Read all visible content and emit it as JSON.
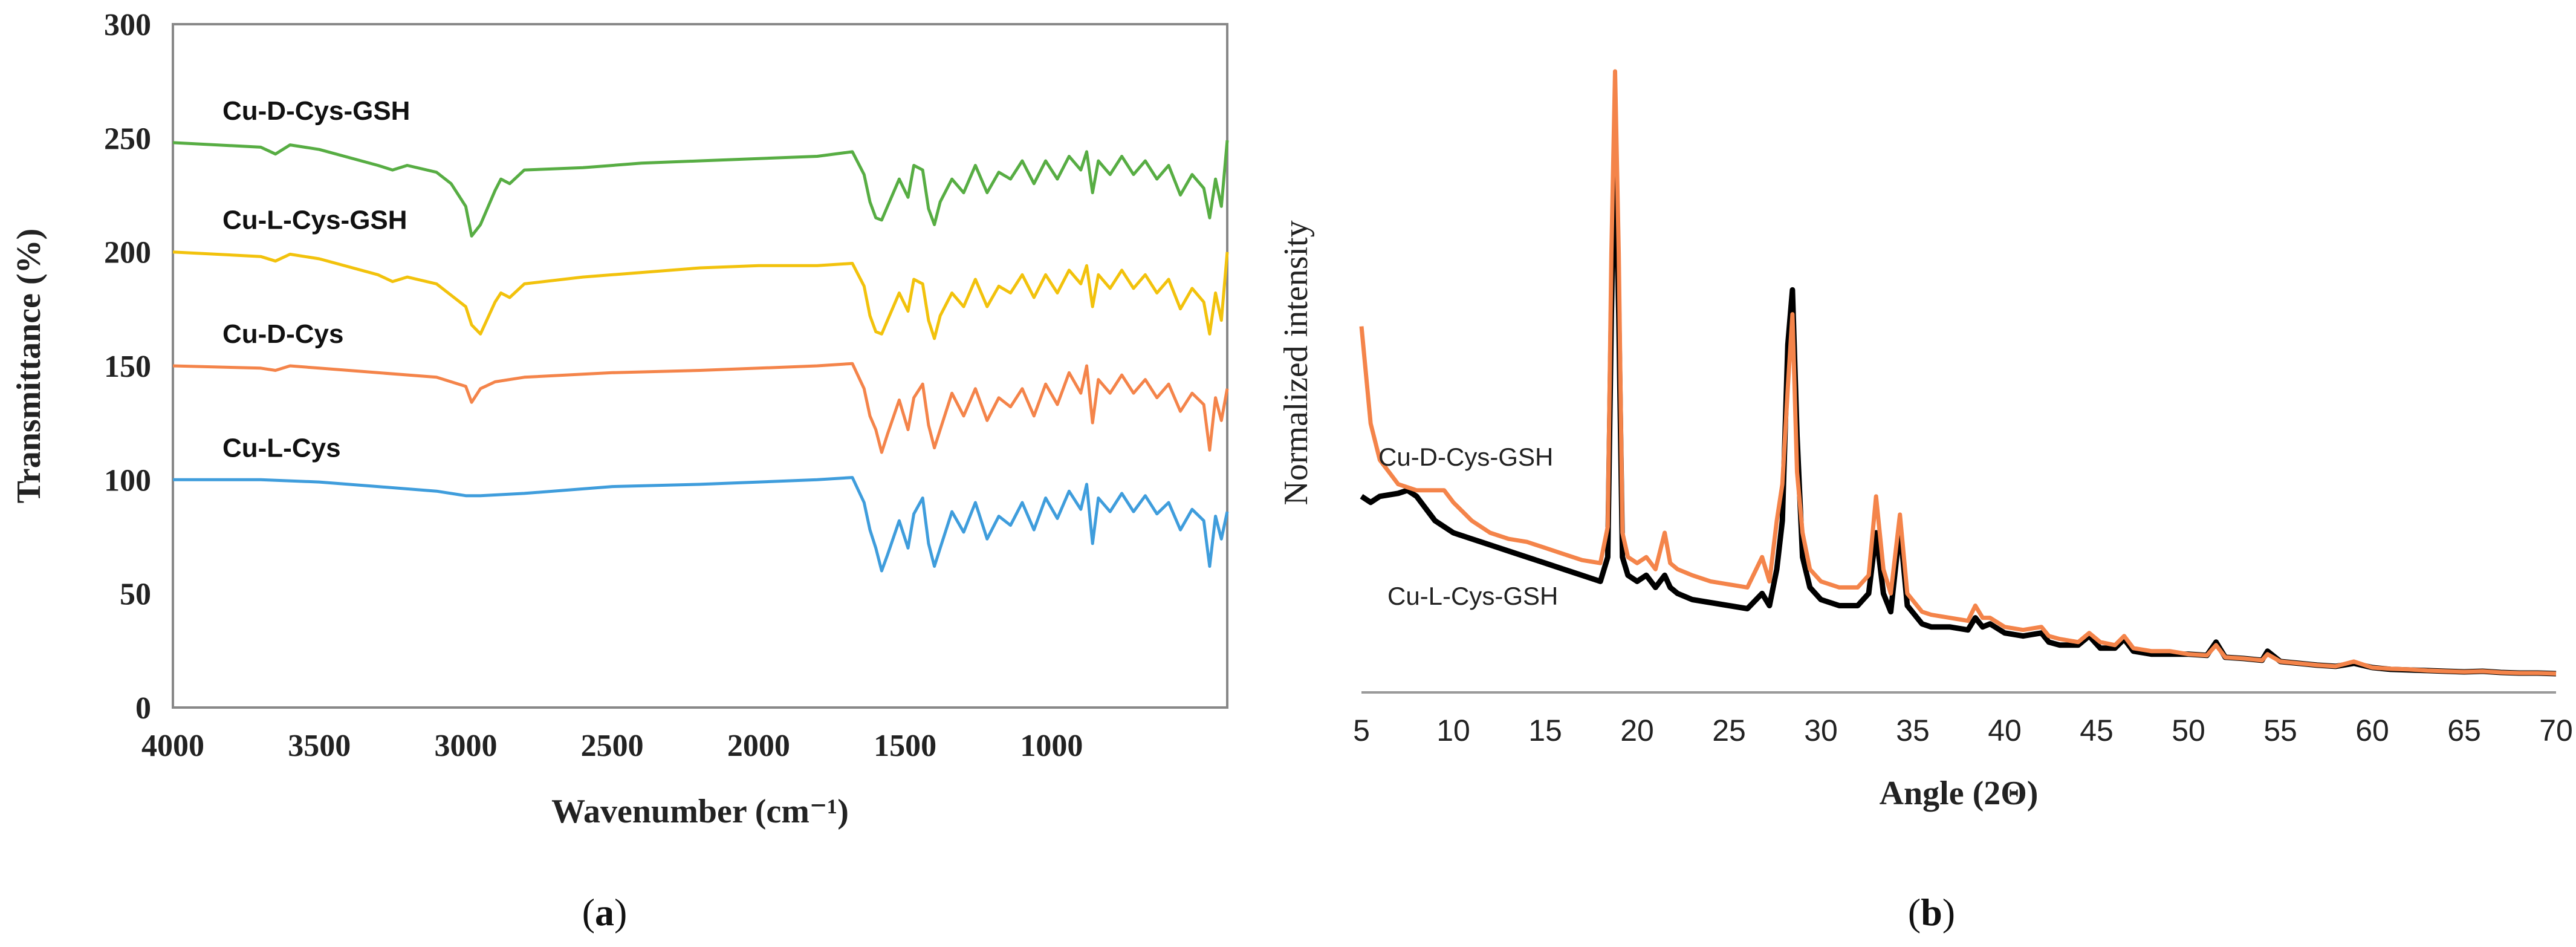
{
  "panels": {
    "a": {
      "caption_letter": "a"
    },
    "b": {
      "caption_letter": "b"
    }
  },
  "chart_data": [
    {
      "id": "ftir",
      "type": "line",
      "xlabel": "Wavenumber (cm⁻¹)",
      "ylabel": "Transmittance (%)",
      "xlim": [
        4000,
        400
      ],
      "x_reversed": true,
      "ylim": [
        0,
        300
      ],
      "xticks": [
        4000,
        3500,
        3000,
        2500,
        2000,
        1500,
        1000
      ],
      "yticks": [
        0,
        50,
        100,
        150,
        200,
        250,
        300
      ],
      "grid": false,
      "legend": "inline labels above each trace",
      "series": [
        {
          "name": "Cu-L-Cys",
          "color": "#3f9ddc",
          "x": [
            4000,
            3700,
            3500,
            3300,
            3100,
            3000,
            2950,
            2800,
            2500,
            2200,
            2000,
            1800,
            1680,
            1640,
            1620,
            1600,
            1580,
            1560,
            1520,
            1490,
            1470,
            1440,
            1420,
            1400,
            1380,
            1340,
            1300,
            1260,
            1220,
            1180,
            1140,
            1100,
            1060,
            1020,
            980,
            940,
            900,
            880,
            860,
            840,
            800,
            760,
            720,
            680,
            640,
            600,
            560,
            520,
            480,
            460,
            440,
            420,
            400
          ],
          "y": [
            100,
            100,
            99,
            97,
            95,
            93,
            93,
            94,
            97,
            98,
            99,
            100,
            101,
            90,
            78,
            70,
            60,
            67,
            82,
            70,
            85,
            92,
            72,
            62,
            70,
            86,
            77,
            90,
            74,
            84,
            80,
            90,
            78,
            92,
            83,
            95,
            87,
            98,
            72,
            92,
            86,
            94,
            86,
            93,
            85,
            90,
            78,
            87,
            82,
            62,
            84,
            74,
            86
          ]
        },
        {
          "name": "Cu-D-Cys",
          "color": "#f4844a",
          "x": [
            4000,
            3700,
            3650,
            3600,
            3500,
            3300,
            3100,
            3000,
            2980,
            2950,
            2900,
            2800,
            2500,
            2200,
            2000,
            1800,
            1680,
            1640,
            1620,
            1600,
            1580,
            1560,
            1520,
            1490,
            1470,
            1440,
            1420,
            1400,
            1380,
            1340,
            1300,
            1260,
            1220,
            1180,
            1140,
            1100,
            1060,
            1020,
            980,
            940,
            900,
            880,
            860,
            840,
            800,
            760,
            720,
            680,
            640,
            600,
            560,
            520,
            480,
            460,
            440,
            420,
            400
          ],
          "y": [
            150,
            149,
            148,
            150,
            149,
            147,
            145,
            141,
            134,
            140,
            143,
            145,
            147,
            148,
            149,
            150,
            151,
            140,
            128,
            122,
            112,
            120,
            135,
            122,
            136,
            142,
            124,
            114,
            122,
            138,
            128,
            140,
            126,
            136,
            132,
            140,
            128,
            142,
            133,
            147,
            138,
            150,
            125,
            144,
            138,
            146,
            138,
            144,
            136,
            142,
            130,
            138,
            133,
            113,
            136,
            126,
            140
          ]
        },
        {
          "name": "Cu-L-Cys-GSH",
          "color": "#f2c20c",
          "x": [
            4000,
            3700,
            3650,
            3600,
            3500,
            3300,
            3250,
            3200,
            3100,
            3050,
            3000,
            2980,
            2950,
            2900,
            2880,
            2850,
            2800,
            2600,
            2400,
            2200,
            2000,
            1800,
            1680,
            1640,
            1620,
            1600,
            1580,
            1560,
            1520,
            1490,
            1470,
            1440,
            1420,
            1400,
            1380,
            1340,
            1300,
            1260,
            1220,
            1180,
            1140,
            1100,
            1060,
            1020,
            980,
            940,
            900,
            880,
            860,
            840,
            800,
            760,
            720,
            680,
            640,
            600,
            560,
            520,
            480,
            460,
            440,
            420,
            400
          ],
          "y": [
            200,
            198,
            196,
            199,
            197,
            190,
            187,
            189,
            186,
            181,
            176,
            168,
            164,
            178,
            182,
            180,
            186,
            189,
            191,
            193,
            194,
            194,
            195,
            185,
            172,
            165,
            164,
            170,
            182,
            174,
            188,
            186,
            170,
            162,
            172,
            182,
            176,
            188,
            176,
            185,
            182,
            190,
            180,
            190,
            182,
            192,
            186,
            194,
            176,
            190,
            184,
            192,
            184,
            190,
            182,
            188,
            175,
            184,
            178,
            164,
            182,
            170,
            200
          ]
        },
        {
          "name": "Cu-D-Cys-GSH",
          "color": "#57ad43",
          "x": [
            4000,
            3700,
            3650,
            3600,
            3500,
            3300,
            3250,
            3200,
            3100,
            3050,
            3000,
            2980,
            2950,
            2900,
            2880,
            2850,
            2800,
            2600,
            2400,
            2200,
            2000,
            1800,
            1680,
            1640,
            1620,
            1600,
            1580,
            1560,
            1520,
            1490,
            1470,
            1440,
            1420,
            1400,
            1380,
            1340,
            1300,
            1260,
            1220,
            1180,
            1140,
            1100,
            1060,
            1020,
            980,
            940,
            900,
            880,
            860,
            840,
            800,
            760,
            720,
            680,
            640,
            600,
            560,
            520,
            480,
            460,
            440,
            420,
            400
          ],
          "y": [
            248,
            246,
            243,
            247,
            245,
            238,
            236,
            238,
            235,
            230,
            220,
            207,
            212,
            227,
            232,
            230,
            236,
            237,
            239,
            240,
            241,
            242,
            244,
            234,
            222,
            215,
            214,
            220,
            232,
            224,
            238,
            236,
            219,
            212,
            222,
            232,
            226,
            238,
            226,
            235,
            232,
            240,
            230,
            240,
            232,
            242,
            236,
            244,
            226,
            240,
            234,
            242,
            234,
            240,
            232,
            238,
            225,
            234,
            228,
            215,
            232,
            220,
            249
          ]
        }
      ]
    },
    {
      "id": "xrd",
      "type": "line",
      "xlabel": "Angle (2Θ)",
      "ylabel": "Normalized intensity",
      "xlim": [
        5,
        70
      ],
      "ylim": [
        0,
        1
      ],
      "xticks": [
        5,
        10,
        15,
        20,
        25,
        30,
        35,
        40,
        45,
        50,
        55,
        60,
        65,
        70
      ],
      "yticks": [],
      "grid": false,
      "legend": "inline labels at left",
      "series": [
        {
          "name": "Cu-L-Cys-GSH",
          "color": "#000000",
          "x": [
            5,
            5.5,
            6,
            7,
            7.5,
            8,
            9,
            10,
            11,
            12,
            13,
            14,
            15,
            16,
            17,
            18,
            18.4,
            18.6,
            18.8,
            19.0,
            19.2,
            19.5,
            20,
            20.5,
            21,
            21.5,
            21.8,
            22.2,
            23,
            24,
            25,
            26,
            26.8,
            27.2,
            27.6,
            27.9,
            28.2,
            28.45,
            28.7,
            29,
            29.4,
            30,
            31,
            32,
            32.6,
            33,
            33.4,
            33.8,
            34.3,
            34.7,
            35.5,
            36,
            37,
            38,
            38.4,
            38.8,
            39.2,
            40,
            41,
            42,
            42.4,
            43,
            44,
            44.6,
            45.2,
            46,
            46.5,
            47,
            48,
            49,
            50,
            51,
            51.5,
            52,
            53,
            54,
            54.3,
            55,
            56,
            57,
            58,
            59,
            60,
            61,
            62,
            63,
            64,
            65,
            66,
            67,
            68,
            69,
            70
          ],
          "y": [
            0.3,
            0.29,
            0.3,
            0.305,
            0.31,
            0.3,
            0.26,
            0.24,
            0.23,
            0.22,
            0.21,
            0.2,
            0.19,
            0.18,
            0.17,
            0.16,
            0.2,
            0.6,
            0.9,
            0.6,
            0.2,
            0.17,
            0.16,
            0.17,
            0.15,
            0.17,
            0.15,
            0.14,
            0.13,
            0.125,
            0.12,
            0.115,
            0.14,
            0.12,
            0.18,
            0.26,
            0.55,
            0.64,
            0.4,
            0.2,
            0.15,
            0.13,
            0.12,
            0.12,
            0.14,
            0.24,
            0.14,
            0.11,
            0.25,
            0.12,
            0.09,
            0.085,
            0.085,
            0.08,
            0.1,
            0.085,
            0.09,
            0.075,
            0.07,
            0.075,
            0.06,
            0.055,
            0.055,
            0.07,
            0.05,
            0.05,
            0.065,
            0.045,
            0.04,
            0.04,
            0.04,
            0.038,
            0.06,
            0.035,
            0.033,
            0.03,
            0.045,
            0.028,
            0.025,
            0.022,
            0.02,
            0.025,
            0.018,
            0.015,
            0.014,
            0.013,
            0.012,
            0.011,
            0.012,
            0.01,
            0.009,
            0.009,
            0.008
          ]
        },
        {
          "name": "Cu-D-Cys-GSH",
          "color": "#f4844a",
          "x": [
            5,
            5.5,
            6,
            7,
            8,
            9,
            9.5,
            10,
            11,
            12,
            13,
            14,
            15,
            16,
            17,
            18,
            18.4,
            18.6,
            18.8,
            19.0,
            19.2,
            19.5,
            20,
            20.5,
            21,
            21.5,
            21.8,
            22.2,
            23,
            24,
            25,
            26,
            26.8,
            27.2,
            27.6,
            27.9,
            28.2,
            28.45,
            28.7,
            29,
            29.4,
            30,
            31,
            32,
            32.6,
            33,
            33.4,
            33.8,
            34.3,
            34.7,
            35.5,
            36,
            37,
            38,
            38.4,
            38.8,
            39.2,
            40,
            41,
            42,
            42.4,
            43,
            44,
            44.6,
            45.2,
            46,
            46.5,
            47,
            48,
            49,
            50,
            51,
            51.5,
            52,
            53,
            54,
            54.3,
            55,
            56,
            57,
            58,
            59,
            60,
            61,
            62,
            63,
            64,
            65,
            66,
            67,
            68,
            69,
            70
          ],
          "y": [
            0.58,
            0.42,
            0.36,
            0.32,
            0.31,
            0.31,
            0.31,
            0.29,
            0.26,
            0.24,
            0.23,
            0.225,
            0.215,
            0.205,
            0.195,
            0.19,
            0.25,
            0.7,
            1.0,
            0.7,
            0.24,
            0.2,
            0.19,
            0.2,
            0.18,
            0.24,
            0.19,
            0.18,
            0.17,
            0.16,
            0.155,
            0.15,
            0.2,
            0.16,
            0.26,
            0.32,
            0.48,
            0.6,
            0.34,
            0.24,
            0.18,
            0.16,
            0.15,
            0.15,
            0.17,
            0.3,
            0.18,
            0.14,
            0.27,
            0.14,
            0.11,
            0.105,
            0.1,
            0.095,
            0.12,
            0.1,
            0.1,
            0.085,
            0.08,
            0.085,
            0.07,
            0.065,
            0.06,
            0.075,
            0.06,
            0.055,
            0.07,
            0.05,
            0.045,
            0.045,
            0.04,
            0.038,
            0.055,
            0.035,
            0.033,
            0.03,
            0.04,
            0.028,
            0.025,
            0.022,
            0.02,
            0.028,
            0.018,
            0.016,
            0.015,
            0.013,
            0.012,
            0.011,
            0.012,
            0.01,
            0.009,
            0.009,
            0.008
          ]
        }
      ]
    }
  ]
}
